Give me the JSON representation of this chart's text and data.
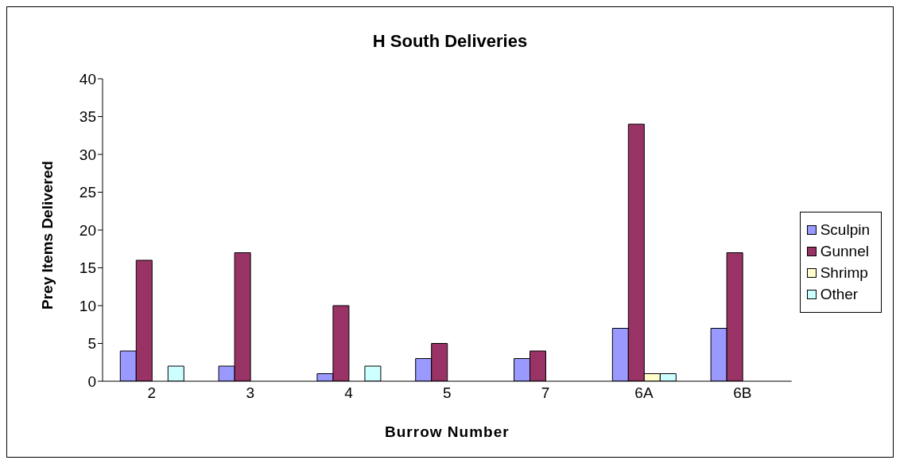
{
  "chart_data": {
    "type": "bar",
    "title": "H South Deliveries",
    "xlabel": "Burrow Number",
    "ylabel": "Prey Items Delivered",
    "categories": [
      "2",
      "3",
      "4",
      "5",
      "7",
      "6A",
      "6B"
    ],
    "series": [
      {
        "name": "Sculpin",
        "color": "#9999ff",
        "values": [
          4,
          2,
          1,
          3,
          3,
          7,
          7
        ]
      },
      {
        "name": "Gunnel",
        "color": "#993366",
        "values": [
          16,
          17,
          10,
          5,
          4,
          34,
          17
        ]
      },
      {
        "name": "Shrimp",
        "color": "#ffffcc",
        "values": [
          0,
          0,
          0,
          0,
          0,
          1,
          0
        ]
      },
      {
        "name": "Other",
        "color": "#ccffff",
        "values": [
          2,
          0,
          2,
          0,
          0,
          1,
          0
        ]
      }
    ],
    "ylim": [
      0,
      40
    ],
    "yticks": [
      0,
      5,
      10,
      15,
      20,
      25,
      30,
      35,
      40
    ],
    "grid": false,
    "legend": "right"
  }
}
